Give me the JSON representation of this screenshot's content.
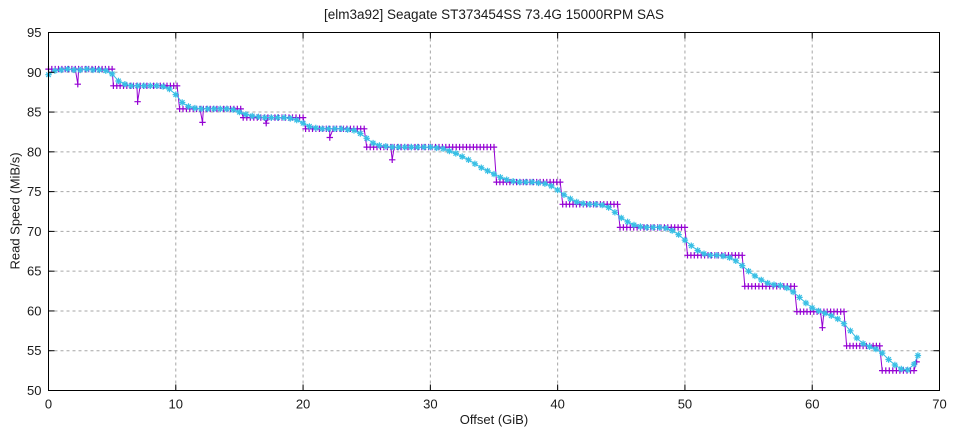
{
  "page": {
    "background": "#ffffff"
  },
  "chart_data": {
    "type": "line",
    "title": "[elm3a92] Seagate ST373454SS 73.4G 15000RPM SAS",
    "xlabel": "Offset (GiB)",
    "ylabel": "Read Speed (MiB/s)",
    "xlim": [
      0,
      70
    ],
    "ylim": [
      50,
      95
    ],
    "xticks": [
      0,
      10,
      20,
      30,
      40,
      50,
      60,
      70
    ],
    "yticks": [
      50,
      55,
      60,
      65,
      70,
      75,
      80,
      85,
      90,
      95
    ],
    "grid": true,
    "legend": "none",
    "colors": {
      "border": "#000000",
      "grid": "#a6a6a6",
      "text": "#1a1a1a",
      "pass1": "#9400d3",
      "pass2": "#38bfe5"
    },
    "series": [
      {
        "name": "read-pass-1",
        "marker": "plus",
        "color": "#9400d3",
        "representation": "steps",
        "marker_spacing_gib": 0.27,
        "steps": [
          [
            0.0,
            5.0,
            90.4
          ],
          [
            5.1,
            10.1,
            88.3
          ],
          [
            10.3,
            15.1,
            85.4
          ],
          [
            15.3,
            20.0,
            84.3
          ],
          [
            20.2,
            24.8,
            82.9
          ],
          [
            25.0,
            35.0,
            80.6
          ],
          [
            35.2,
            40.2,
            76.2
          ],
          [
            40.4,
            44.7,
            73.4
          ],
          [
            44.9,
            50.0,
            70.5
          ],
          [
            50.2,
            54.5,
            67.0
          ],
          [
            54.7,
            58.6,
            63.1
          ],
          [
            58.8,
            62.5,
            59.9
          ],
          [
            62.7,
            65.3,
            55.6
          ],
          [
            65.5,
            68.0,
            52.5
          ]
        ],
        "dips": [
          [
            2.3,
            88.5
          ],
          [
            7.0,
            86.3
          ],
          [
            12.1,
            83.7
          ],
          [
            17.1,
            83.6
          ],
          [
            22.1,
            81.8
          ],
          [
            27.0,
            79.0
          ],
          [
            60.8,
            57.9
          ]
        ],
        "tail": [
          68.2,
          53.6
        ]
      },
      {
        "name": "read-pass-2",
        "marker": "asterisk",
        "color": "#38bfe5",
        "representation": "points",
        "points": [
          [
            0,
            89.7
          ],
          [
            0.5,
            90.2
          ],
          [
            1,
            90.3
          ],
          [
            1.5,
            90.4
          ],
          [
            2,
            90.3
          ],
          [
            2.5,
            90.3
          ],
          [
            3,
            90.4
          ],
          [
            3.5,
            90.3
          ],
          [
            4,
            90.3
          ],
          [
            4.5,
            90.2
          ],
          [
            5,
            89.8
          ],
          [
            5.5,
            88.9
          ],
          [
            6,
            88.5
          ],
          [
            6.5,
            88.3
          ],
          [
            7,
            88.3
          ],
          [
            7.5,
            88.3
          ],
          [
            8,
            88.3
          ],
          [
            8.5,
            88.3
          ],
          [
            9,
            88.2
          ],
          [
            9.5,
            87.9
          ],
          [
            10,
            87.2
          ],
          [
            10.5,
            86.2
          ],
          [
            11,
            85.7
          ],
          [
            11.5,
            85.5
          ],
          [
            12,
            85.4
          ],
          [
            12.5,
            85.4
          ],
          [
            13,
            85.4
          ],
          [
            13.5,
            85.4
          ],
          [
            14,
            85.4
          ],
          [
            14.5,
            85.3
          ],
          [
            15,
            85.0
          ],
          [
            15.5,
            84.7
          ],
          [
            16,
            84.5
          ],
          [
            16.5,
            84.4
          ],
          [
            17,
            84.3
          ],
          [
            17.5,
            84.3
          ],
          [
            18,
            84.3
          ],
          [
            18.5,
            84.3
          ],
          [
            19,
            84.2
          ],
          [
            19.5,
            84.0
          ],
          [
            20,
            83.6
          ],
          [
            20.5,
            83.2
          ],
          [
            21,
            83.0
          ],
          [
            21.5,
            82.9
          ],
          [
            22,
            82.9
          ],
          [
            22.5,
            82.9
          ],
          [
            23,
            82.9
          ],
          [
            23.5,
            82.8
          ],
          [
            24,
            82.7
          ],
          [
            24.5,
            82.3
          ],
          [
            25,
            81.7
          ],
          [
            25.5,
            81.1
          ],
          [
            26,
            80.8
          ],
          [
            26.5,
            80.7
          ],
          [
            27,
            80.6
          ],
          [
            27.5,
            80.6
          ],
          [
            28,
            80.6
          ],
          [
            28.5,
            80.6
          ],
          [
            29,
            80.6
          ],
          [
            29.5,
            80.6
          ],
          [
            30,
            80.6
          ],
          [
            30.5,
            80.5
          ],
          [
            31,
            80.4
          ],
          [
            31.5,
            80.1
          ],
          [
            32,
            79.8
          ],
          [
            32.5,
            79.4
          ],
          [
            33,
            79.0
          ],
          [
            33.5,
            78.5
          ],
          [
            34,
            78.0
          ],
          [
            34.5,
            77.6
          ],
          [
            35,
            77.2
          ],
          [
            35.5,
            76.8
          ],
          [
            36,
            76.5
          ],
          [
            36.5,
            76.3
          ],
          [
            37,
            76.2
          ],
          [
            37.5,
            76.2
          ],
          [
            38,
            76.2
          ],
          [
            38.5,
            76.1
          ],
          [
            39,
            76.0
          ],
          [
            39.5,
            75.7
          ],
          [
            40,
            75.2
          ],
          [
            40.5,
            74.6
          ],
          [
            41,
            74.1
          ],
          [
            41.5,
            73.7
          ],
          [
            42,
            73.5
          ],
          [
            42.5,
            73.4
          ],
          [
            43,
            73.4
          ],
          [
            43.5,
            73.3
          ],
          [
            44,
            73.0
          ],
          [
            44.5,
            72.4
          ],
          [
            45,
            71.7
          ],
          [
            45.5,
            71.2
          ],
          [
            46,
            70.8
          ],
          [
            46.5,
            70.6
          ],
          [
            47,
            70.5
          ],
          [
            47.5,
            70.5
          ],
          [
            48,
            70.5
          ],
          [
            48.5,
            70.4
          ],
          [
            49,
            70.1
          ],
          [
            49.5,
            69.6
          ],
          [
            50,
            68.9
          ],
          [
            50.5,
            68.2
          ],
          [
            51,
            67.6
          ],
          [
            51.5,
            67.2
          ],
          [
            52,
            67.0
          ],
          [
            52.5,
            67.0
          ],
          [
            53,
            66.9
          ],
          [
            53.5,
            66.7
          ],
          [
            54,
            66.3
          ],
          [
            54.5,
            65.7
          ],
          [
            55,
            65.0
          ],
          [
            55.5,
            64.4
          ],
          [
            56,
            63.9
          ],
          [
            56.5,
            63.5
          ],
          [
            57,
            63.3
          ],
          [
            57.5,
            63.2
          ],
          [
            58,
            62.9
          ],
          [
            58.5,
            62.4
          ],
          [
            59,
            61.7
          ],
          [
            59.5,
            61.0
          ],
          [
            60,
            60.4
          ],
          [
            60.5,
            60.0
          ],
          [
            61,
            59.7
          ],
          [
            61.5,
            59.4
          ],
          [
            62,
            59.0
          ],
          [
            62.5,
            58.4
          ],
          [
            63,
            57.5
          ],
          [
            63.5,
            56.6
          ],
          [
            64,
            55.9
          ],
          [
            64.5,
            55.5
          ],
          [
            65,
            55.2
          ],
          [
            65.5,
            54.7
          ],
          [
            66,
            53.9
          ],
          [
            66.5,
            53.2
          ],
          [
            67,
            52.7
          ],
          [
            67.5,
            52.6
          ],
          [
            68,
            53.3
          ],
          [
            68.3,
            54.4
          ]
        ]
      }
    ]
  }
}
